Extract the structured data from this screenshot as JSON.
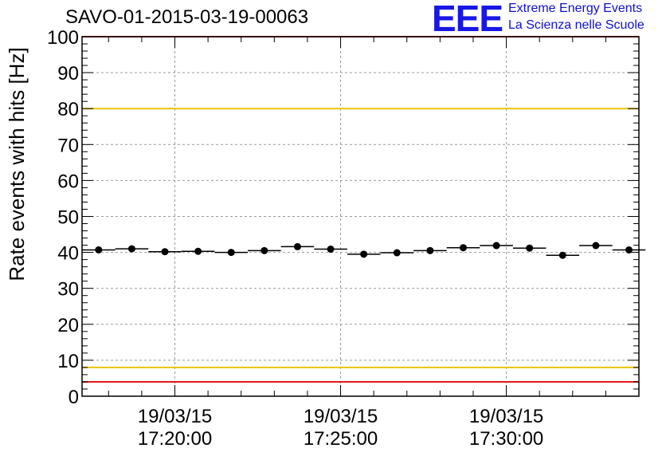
{
  "chart_data": {
    "type": "scatter",
    "title": "SAVO-01-2015-03-19-00063",
    "ylabel": "Rate events with hits [Hz]",
    "xlabel": "",
    "ylim": [
      0,
      100
    ],
    "yticks": [
      0,
      10,
      20,
      30,
      40,
      50,
      60,
      70,
      80,
      90,
      100
    ],
    "x_range_minutes": [
      17.2,
      34.0
    ],
    "xticks": [
      {
        "minute": 20,
        "date": "19/03/15",
        "time": "17:20:00"
      },
      {
        "minute": 25,
        "date": "19/03/15",
        "time": "17:25:00"
      },
      {
        "minute": 30,
        "date": "19/03/15",
        "time": "17:30:00"
      }
    ],
    "grid": true,
    "series": [
      {
        "x": [
          "17:17:42",
          "17:18:42",
          "17:19:42",
          "17:20:42",
          "17:21:42",
          "17:22:42",
          "17:23:42",
          "17:24:42",
          "17:25:42",
          "17:26:42",
          "17:27:42",
          "17:28:42",
          "17:29:42",
          "17:30:42",
          "17:31:42",
          "17:32:42",
          "17:33:42"
        ],
        "y": [
          40.7,
          41.0,
          40.2,
          40.3,
          40.0,
          40.5,
          41.6,
          40.9,
          39.5,
          39.9,
          40.5,
          41.3,
          41.9,
          41.2,
          39.2,
          41.9,
          40.7
        ]
      }
    ],
    "reference_lines": [
      {
        "y": 100,
        "color": "#e81717"
      },
      {
        "y": 80,
        "color": "#ecc20c"
      },
      {
        "y": 8,
        "color": "#ecc20c"
      },
      {
        "y": 4,
        "color": "#e81717"
      }
    ]
  },
  "logo": {
    "letters": "EEE",
    "line1": "Extreme Energy Events",
    "line2": "La Scienza nelle Scuole"
  }
}
